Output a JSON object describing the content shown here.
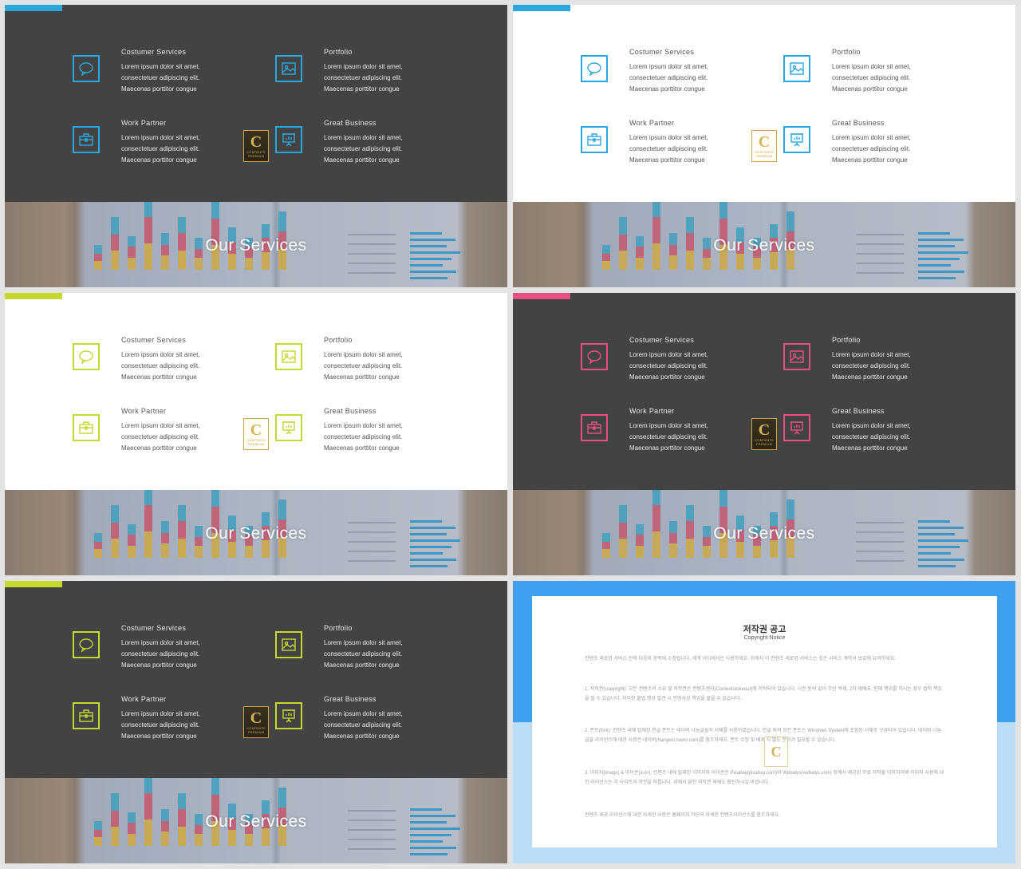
{
  "service_items": [
    {
      "title": "Costumer  Services",
      "icon": "speech-bubble-icon",
      "lines": [
        "Lorem ipsum dolor sit amet,",
        "consectetuer adipiscing  elit.",
        "Maecenas porttitor congue"
      ]
    },
    {
      "title": "Portfolio",
      "icon": "image-icon",
      "lines": [
        "Lorem ipsum dolor sit amet,",
        "consectetuer adipiscing  elit.",
        "Maecenas porttitor congue"
      ]
    },
    {
      "title": "Work  Partner",
      "icon": "briefcase-icon",
      "lines": [
        "Lorem ipsum dolor sit amet,",
        "consectetuer adipiscing  elit.",
        "Maecenas porttitor congue"
      ]
    },
    {
      "title": "Great  Business",
      "icon": "presentation-chart-icon",
      "lines": [
        "Lorem ipsum dolor sit amet,",
        "consectetuer adipiscing  elit.",
        "Maecenas porttitor congue"
      ]
    }
  ],
  "slides": [
    {
      "theme": "dark",
      "accent": "#29a8e0",
      "banner_title": "Our Services"
    },
    {
      "theme": "light",
      "accent": "#29a8e0",
      "banner_title": "Our Services"
    },
    {
      "theme": "light",
      "accent": "#c5d82e",
      "banner_title": "Our Services"
    },
    {
      "theme": "dark",
      "accent": "#ea4f86",
      "banner_title": "Our Services"
    },
    {
      "theme": "dark",
      "accent": "#c5d82e",
      "banner_title": "Our Services"
    }
  ],
  "badge": {
    "letter": "C",
    "caption_1": "CONTENTS",
    "caption_2": "PREMIUM"
  },
  "copyright": {
    "title": "저작권 공고",
    "subtitle": "Copyright Notice",
    "paragraphs": [
      "컨텐츠 세로업 서비스 전에 다음의 항목에 소정됩니다. 세계 어디에서든 사용하세요. 위에서 이 컨텐츠 세로업 서비스는 것은 서비스 계약서 보호에 유의하세요.",
      "1. 저작권(copyright): 모든 컨텐츠의 소유 및 저작권은 컨텐츠센터(Contentstokeout)에 저작되어 있습니다. 시전 동의 없이 무단 복제, 2차 재배포, 판매 행위를 하시는 경우 법적 책임을 질 수 있습니다. 이러한 불법 행위 발견 시 민형사상 책임을 물을 수 있습니다.",
      "2. 폰트(font): 컨텐츠 내에 탑재된 한글 폰트는 네이버 나눔글꼴의 서체를 사용하였습니다. 한글 외의 모든 폰트는 Windows System에 포함된 서체로 구성되어 있습니다. 네이버 나눔글꼴 라이선스에 대한 사항은 네이버(hangeul.naver.com)를 참조하세요. 폰트 수정 및 배포 시 별도 문의가 필요할 수 있습니다.",
      "3. 이미지(image) & 아이콘(icon): 컨텐츠 내에 탑재된 이미지와 아이콘은 Pixabay(pixabay.com)와 Webalys(webalys.com) 등에서 제공된 무료 저작물 이미지이며 이미지 사용에 대한 라이선스는 각 사이트의 약관을 따릅니다. 위에서 밝힌 저작권 외에도 확인하시길 바랍니다.",
      "컨텐츠 세로 라이선스에 대한 자세한 사항은 홈페이지 하단의 자세한 컨텐츠라이선스를 참조하세요."
    ]
  }
}
